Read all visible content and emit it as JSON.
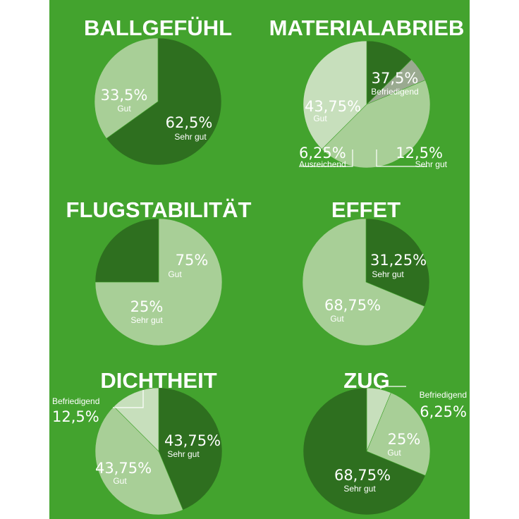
{
  "colors": {
    "background": "#43a32e",
    "sehr_gut": "#2e6f1f",
    "gut": "#a8cf97",
    "befriedigend": "#c7dfbc",
    "ausreichend": "#9aaa90",
    "text": "#ffffff"
  },
  "chart_data": [
    {
      "type": "pie",
      "title": "BALLGEFÜHL",
      "slices": [
        {
          "category": "Sehr gut",
          "value": 62.5,
          "label": "62,5%"
        },
        {
          "category": "Gut",
          "value": 33.5,
          "label": "33,5%"
        }
      ]
    },
    {
      "type": "pie",
      "title": "MATERIALABRIEB",
      "slices": [
        {
          "category": "Sehr gut",
          "value": 12.5,
          "label": "12,5%"
        },
        {
          "category": "Ausreichend",
          "value": 6.25,
          "label": "6,25%"
        },
        {
          "category": "Gut",
          "value": 43.75,
          "label": "43,75%"
        },
        {
          "category": "Befriedigend",
          "value": 37.5,
          "label": "37,5%"
        }
      ]
    },
    {
      "type": "pie",
      "title": "FLUGSTABILITÄT",
      "slices": [
        {
          "category": "Gut",
          "value": 75,
          "label": "75%"
        },
        {
          "category": "Sehr gut",
          "value": 25,
          "label": "25%"
        }
      ]
    },
    {
      "type": "pie",
      "title": "EFFET",
      "slices": [
        {
          "category": "Sehr gut",
          "value": 31.25,
          "label": "31,25%"
        },
        {
          "category": "Gut",
          "value": 68.75,
          "label": "68,75%"
        }
      ]
    },
    {
      "type": "pie",
      "title": "DICHTHEIT",
      "slices": [
        {
          "category": "Sehr gut",
          "value": 43.75,
          "label": "43,75%"
        },
        {
          "category": "Gut",
          "value": 43.75,
          "label": "43,75%"
        },
        {
          "category": "Befriedigend",
          "value": 12.5,
          "label": "12,5%"
        }
      ]
    },
    {
      "type": "pie",
      "title": "ZUG",
      "slices": [
        {
          "category": "Befriedigend",
          "value": 6.25,
          "label": "6,25%"
        },
        {
          "category": "Gut",
          "value": 25,
          "label": "25%"
        },
        {
          "category": "Sehr gut",
          "value": 68.75,
          "label": "68,75%"
        }
      ]
    }
  ]
}
